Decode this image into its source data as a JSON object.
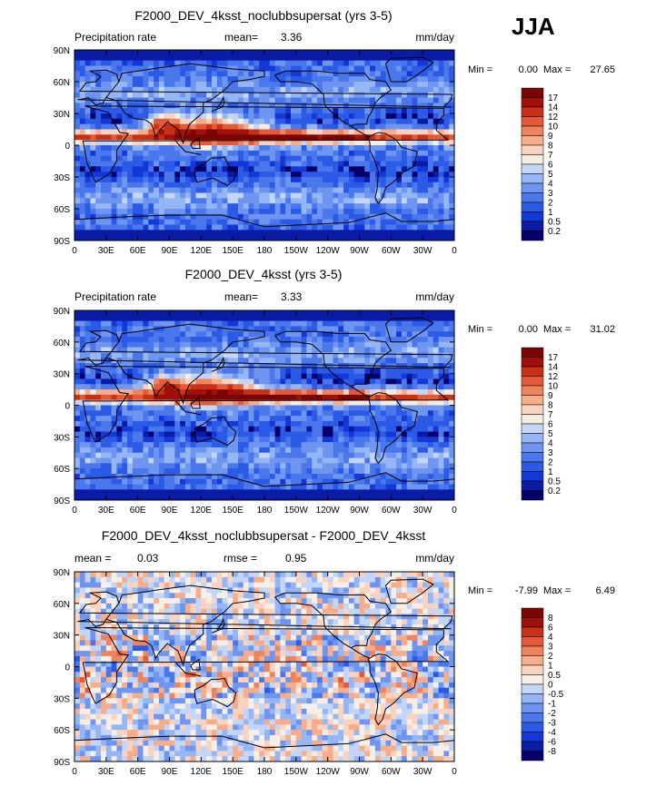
{
  "season": "JJA",
  "lat_ticks": [
    "90N",
    "60N",
    "30N",
    "0",
    "30S",
    "60S",
    "90S"
  ],
  "lon_ticks": [
    "0",
    "30E",
    "60E",
    "90E",
    "120E",
    "150E",
    "180",
    "150W",
    "120W",
    "90W",
    "60W",
    "30W",
    "0"
  ],
  "panels": [
    {
      "title": "F2000_DEV_4ksst_noclubbsupersat (yrs 3-5)",
      "left_label": "Precipitation rate",
      "stat1_label": "mean=",
      "stat1_value": "3.36",
      "stat2_label": "",
      "stat2_value": "",
      "units": "mm/day",
      "min_label": "Min =",
      "min_value": "0.00",
      "max_label": "Max =",
      "max_value": "27.65",
      "colorbar_labels": [
        "17",
        "14",
        "12",
        "10",
        "9",
        "8",
        "7",
        "6",
        "5",
        "4",
        "3",
        "2",
        "1",
        "0.5",
        "0.2"
      ]
    },
    {
      "title": "F2000_DEV_4ksst (yrs 3-5)",
      "left_label": "Precipitation rate",
      "stat1_label": "mean=",
      "stat1_value": "3.33",
      "stat2_label": "",
      "stat2_value": "",
      "units": "mm/day",
      "min_label": "Min =",
      "min_value": "0.00",
      "max_label": "Max =",
      "max_value": "31.02",
      "colorbar_labels": [
        "17",
        "14",
        "12",
        "10",
        "9",
        "8",
        "7",
        "6",
        "5",
        "4",
        "3",
        "2",
        "1",
        "0.5",
        "0.2"
      ]
    },
    {
      "title": "F2000_DEV_4ksst_noclubbsupersat - F2000_DEV_4ksst",
      "left_label": "",
      "stat1_label": "mean =",
      "stat1_value": "0.03",
      "stat2_label": "rmse =",
      "stat2_value": "0.95",
      "units": "mm/day",
      "min_label": "Min =",
      "min_value": "-7.99",
      "max_label": "Max =",
      "max_value": "6.49",
      "colorbar_labels": [
        "8",
        "6",
        "4",
        "3",
        "2",
        "1",
        "0.5",
        "0",
        "-0.5",
        "-1",
        "-2",
        "-3",
        "-4",
        "-6",
        "-8"
      ]
    }
  ],
  "chart_data": [
    {
      "type": "heatmap",
      "title": "F2000_DEV_4ksst_noclubbsupersat (yrs 3-5)",
      "variable": "Precipitation rate",
      "units": "mm/day",
      "mean": 3.36,
      "min": 0.0,
      "max": 27.65,
      "colorbar_levels": [
        0.2,
        0.5,
        1,
        2,
        3,
        4,
        5,
        6,
        7,
        8,
        9,
        10,
        12,
        14,
        17
      ],
      "x_range": [
        0,
        360
      ],
      "y_range": [
        -90,
        90
      ]
    },
    {
      "type": "heatmap",
      "title": "F2000_DEV_4ksst (yrs 3-5)",
      "variable": "Precipitation rate",
      "units": "mm/day",
      "mean": 3.33,
      "min": 0.0,
      "max": 31.02,
      "colorbar_levels": [
        0.2,
        0.5,
        1,
        2,
        3,
        4,
        5,
        6,
        7,
        8,
        9,
        10,
        12,
        14,
        17
      ],
      "x_range": [
        0,
        360
      ],
      "y_range": [
        -90,
        90
      ]
    },
    {
      "type": "heatmap",
      "title": "F2000_DEV_4ksst_noclubbsupersat - F2000_DEV_4ksst",
      "units": "mm/day",
      "mean": 0.03,
      "rmse": 0.95,
      "min": -7.99,
      "max": 6.49,
      "colorbar_levels": [
        -8,
        -6,
        -4,
        -3,
        -2,
        -1,
        -0.5,
        0,
        0.5,
        1,
        2,
        3,
        4,
        6,
        8
      ],
      "x_range": [
        0,
        360
      ],
      "y_range": [
        -90,
        90
      ]
    }
  ],
  "colors": {
    "precip_scale": [
      "#08006a",
      "#0a1ca6",
      "#1438d8",
      "#2a5ae6",
      "#4a78ec",
      "#6e96f0",
      "#95b6f4",
      "#c3d6f8",
      "#f4eee0",
      "#fad3c0",
      "#f6ad8a",
      "#ee845e",
      "#e25a38",
      "#ca3015",
      "#a00f0a",
      "#7a0505"
    ],
    "diff_scale": [
      "#08006a",
      "#0a1ca6",
      "#1438d8",
      "#2a5ae6",
      "#4a78ec",
      "#6e96f0",
      "#95b6f4",
      "#c3d6f8",
      "#f5efe6",
      "#fad3c0",
      "#f6ad8a",
      "#ee845e",
      "#e25a38",
      "#ca3015",
      "#a00f0a",
      "#7a0505"
    ]
  }
}
